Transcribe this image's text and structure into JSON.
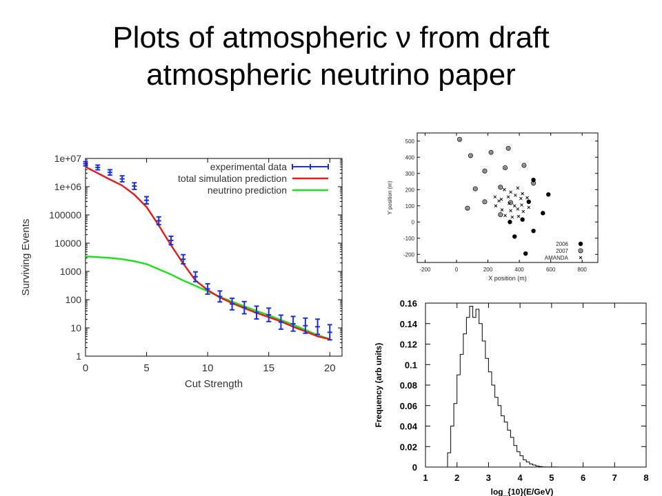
{
  "slide": {
    "title_line1": "Plots of atmospheric ν from draft",
    "title_line2": "atmospheric neutrino paper"
  },
  "chart_data": [
    {
      "id": "surviving",
      "type": "line",
      "xlabel": "Cut Strength",
      "ylabel": "Surviving Events",
      "xlim": [
        0,
        21
      ],
      "ylim": [
        1,
        10000000
      ],
      "yscale": "log",
      "xticks": [
        0,
        5,
        10,
        15,
        20
      ],
      "yticks": [
        1,
        10,
        100,
        1000,
        10000,
        100000,
        1000000,
        10000000
      ],
      "ytick_labels": [
        "1",
        "10",
        "100",
        "1000",
        "10000",
        "100000",
        "1e+06",
        "1e+07"
      ],
      "legend_position": "top-right",
      "colors": {
        "data": "#1a2fd8",
        "total": "#e02020",
        "neutrino": "#22dd22"
      },
      "series": [
        {
          "name": "experimental data",
          "kind": "points",
          "x": [
            0,
            1,
            2,
            3,
            4,
            5,
            6,
            7,
            8,
            9,
            10,
            11,
            12,
            13,
            14,
            15,
            16,
            17,
            18,
            19,
            20
          ],
          "y": [
            6500000,
            4800000,
            3200000,
            1900000,
            1050000,
            330000,
            62000,
            12500,
            2700,
            650,
            240,
            130,
            70,
            52,
            35,
            29,
            16,
            14,
            12,
            11,
            7
          ]
        },
        {
          "name": "total simulation prediction",
          "kind": "line",
          "x": [
            0,
            1,
            2,
            3,
            4,
            5,
            6,
            7,
            8,
            9,
            10,
            11,
            12,
            13,
            14,
            15,
            16,
            17,
            18,
            19,
            20
          ],
          "y": [
            5000000,
            3000000,
            1800000,
            1100000,
            520000,
            190000,
            42000,
            8500,
            1900,
            480,
            220,
            120,
            75,
            50,
            34,
            24,
            17,
            11,
            7.5,
            5,
            4
          ]
        },
        {
          "name": "neutrino prediction",
          "kind": "line",
          "x": [
            0,
            1,
            2,
            3,
            4,
            5,
            6,
            7,
            8,
            9,
            10,
            11,
            12,
            13,
            14,
            15,
            16,
            17,
            18,
            19,
            20
          ],
          "y": [
            3400,
            3200,
            3000,
            2700,
            2300,
            1800,
            1200,
            780,
            480,
            310,
            200,
            125,
            85,
            58,
            40,
            28,
            19,
            13,
            8.5,
            5.5,
            4
          ]
        }
      ]
    },
    {
      "id": "positions",
      "type": "scatter",
      "xlabel": "X position (m)",
      "ylabel": "Y position (m)",
      "xlim": [
        -250,
        900
      ],
      "ylim": [
        -250,
        550
      ],
      "xticks": [
        -200,
        0,
        200,
        400,
        600,
        800
      ],
      "yticks": [
        -200,
        -100,
        0,
        100,
        200,
        300,
        400,
        500
      ],
      "legend_position": "bottom-right",
      "series": [
        {
          "name": "2006",
          "marker": "filled-circle",
          "points": [
            [
              490,
              260
            ],
            [
              585,
              170
            ],
            [
              460,
              125
            ],
            [
              550,
              55
            ],
            [
              340,
              0
            ],
            [
              420,
              15
            ],
            [
              490,
              -55
            ],
            [
              370,
              -90
            ],
            [
              440,
              -195
            ]
          ]
        },
        {
          "name": "2007",
          "marker": "open-circle",
          "points": [
            [
              20,
              510
            ],
            [
              90,
              410
            ],
            [
              220,
              430
            ],
            [
              330,
              455
            ],
            [
              180,
              315
            ],
            [
              310,
              335
            ],
            [
              430,
              350
            ],
            [
              120,
              205
            ],
            [
              280,
              215
            ],
            [
              490,
              240
            ],
            [
              70,
              85
            ],
            [
              180,
              125
            ],
            [
              345,
              120
            ],
            [
              280,
              45
            ]
          ]
        },
        {
          "name": "AMANDA",
          "marker": "cross",
          "points": [
            [
              305,
              200
            ],
            [
              345,
              185
            ],
            [
              390,
              210
            ],
            [
              420,
              175
            ],
            [
              375,
              165
            ],
            [
              330,
              155
            ],
            [
              410,
              145
            ],
            [
              450,
              150
            ],
            [
              245,
              155
            ],
            [
              285,
              140
            ],
            [
              335,
              115
            ],
            [
              370,
              100
            ],
            [
              415,
              105
            ],
            [
              460,
              90
            ],
            [
              250,
              100
            ],
            [
              290,
              75
            ],
            [
              345,
              70
            ],
            [
              390,
              80
            ],
            [
              425,
              65
            ],
            [
              310,
              40
            ],
            [
              355,
              30
            ],
            [
              395,
              35
            ],
            [
              270,
              130
            ]
          ]
        }
      ]
    },
    {
      "id": "energy",
      "type": "bar",
      "style": "step-histogram",
      "xlabel": "log_{10}(E/GeV)",
      "ylabel": "Frequency (arb units)",
      "xlim": [
        1,
        8
      ],
      "ylim": [
        0,
        0.16
      ],
      "xticks": [
        1,
        2,
        3,
        4,
        5,
        6,
        7,
        8
      ],
      "yticks": [
        0,
        0.02,
        0.04,
        0.06,
        0.08,
        0.1,
        0.12,
        0.14,
        0.16
      ],
      "ytick_labels": [
        "0",
        "0.02",
        "0.04",
        "0.06",
        "0.08",
        "0.1",
        "0.12",
        "0.14",
        "0.16"
      ],
      "bin_start": 1.7,
      "bin_width": 0.1,
      "values": [
        0.014,
        0.04,
        0.062,
        0.09,
        0.11,
        0.13,
        0.146,
        0.157,
        0.146,
        0.154,
        0.14,
        0.123,
        0.106,
        0.093,
        0.08,
        0.068,
        0.06,
        0.05,
        0.044,
        0.036,
        0.029,
        0.021,
        0.015,
        0.011,
        0.007,
        0.005,
        0.003,
        0.002,
        0.001,
        0.0005,
        0.0002,
        0.0001,
        0.0001,
        0.0001,
        0.0001
      ]
    }
  ]
}
